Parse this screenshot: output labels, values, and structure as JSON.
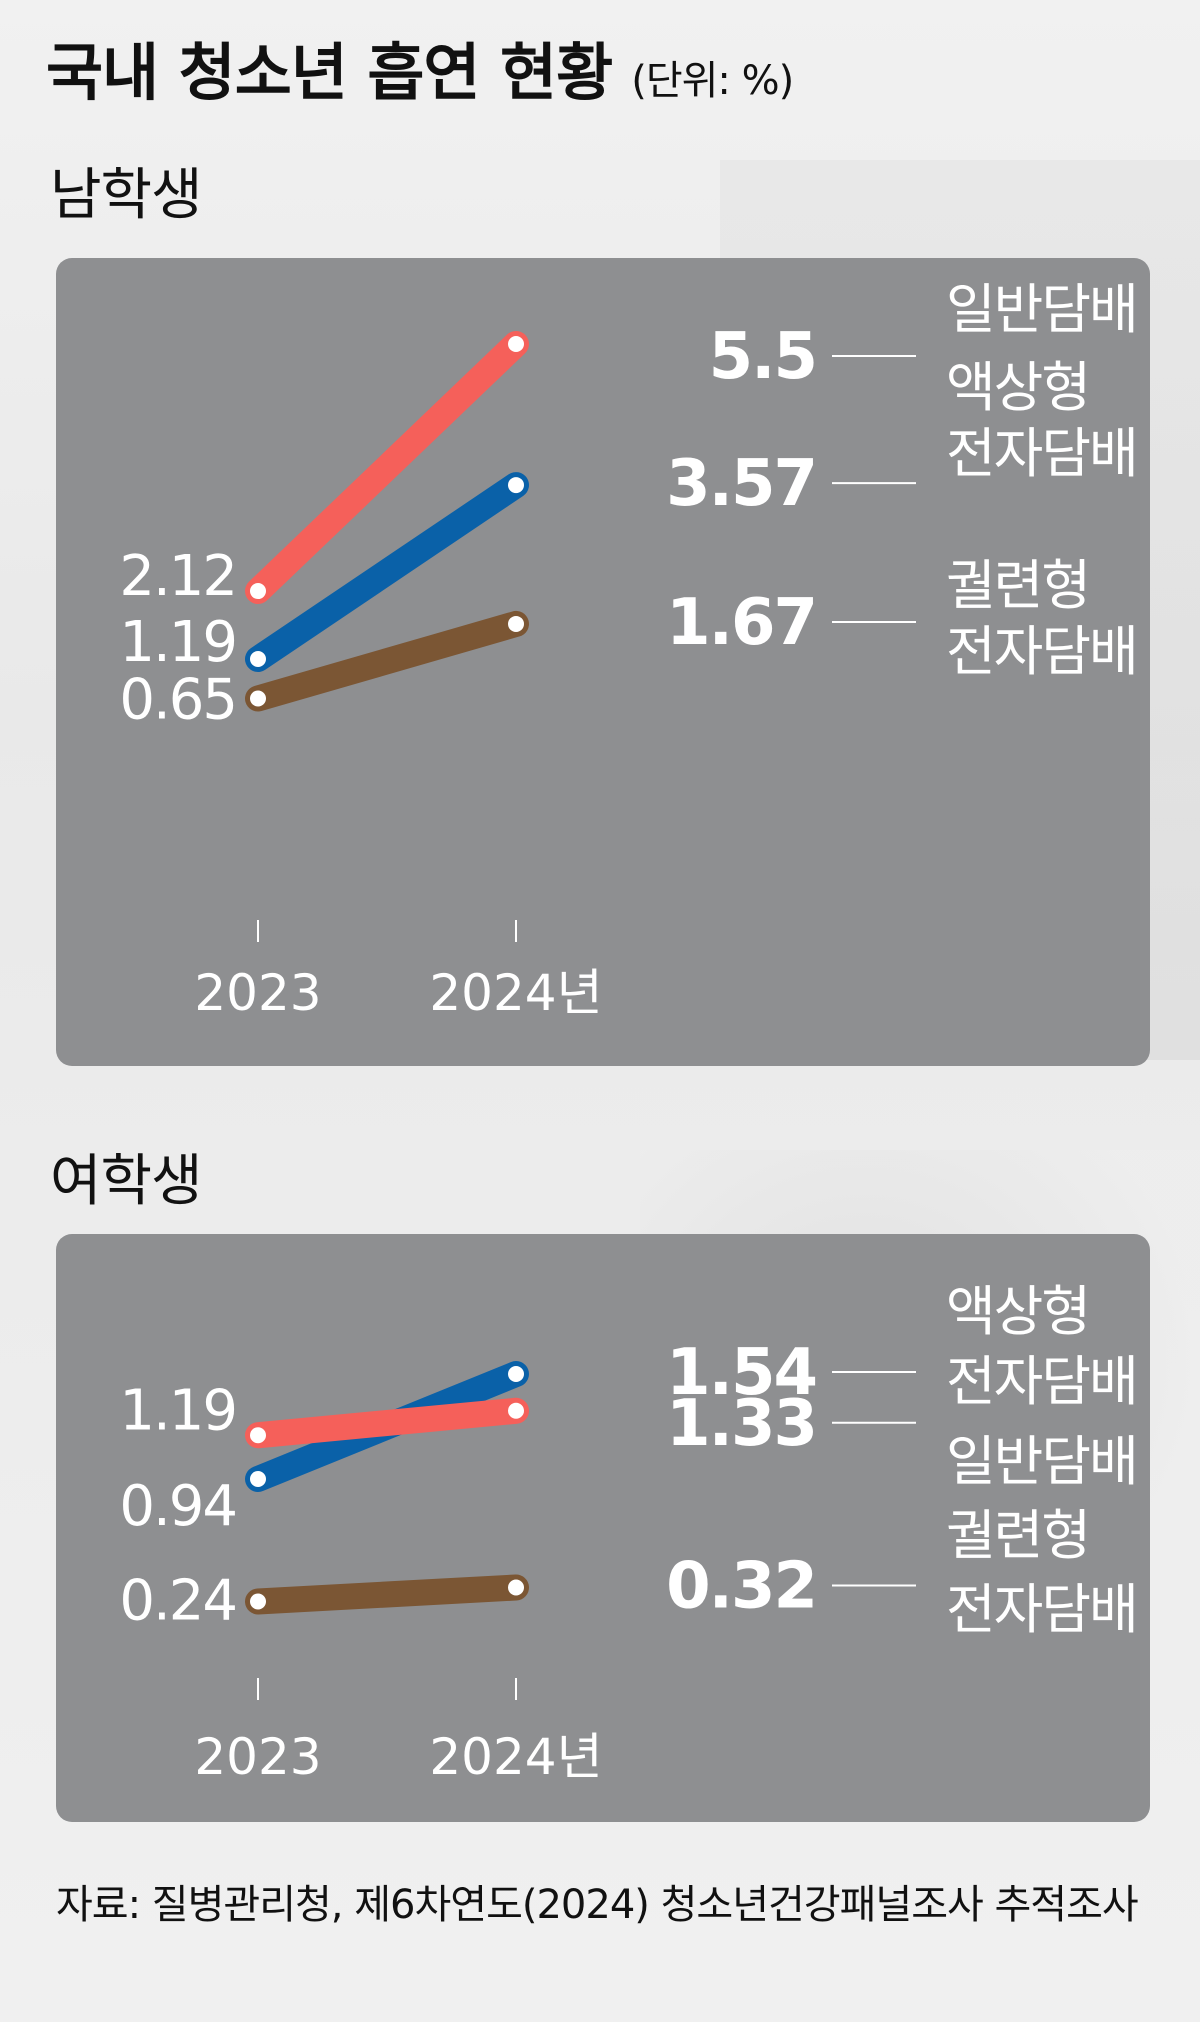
{
  "title": "국내 청소년 흡연 현황",
  "unit": "(단위: %)",
  "source": "자료: 질병관리청, 제6차연도(2024) 청소년건강패널조사 추적조사",
  "chart_data": [
    {
      "type": "line",
      "title": "남학생",
      "categories": [
        "2023",
        "2024년"
      ],
      "ylim": [
        0,
        6
      ],
      "series": [
        {
          "name": "일반담배",
          "color": "#f5605a",
          "values": [
            2.12,
            5.5
          ]
        },
        {
          "name": "액상형 전자담배",
          "color": "#0a61a8",
          "values": [
            1.19,
            3.57
          ]
        },
        {
          "name": "궐련형 전자담배",
          "color": "#7b5634",
          "values": [
            0.65,
            1.67
          ]
        }
      ]
    },
    {
      "type": "line",
      "title": "여학생",
      "categories": [
        "2023",
        "2024년"
      ],
      "ylim": [
        0,
        2
      ],
      "series": [
        {
          "name": "액상형 전자담배",
          "color": "#0a61a8",
          "values": [
            0.94,
            1.54
          ]
        },
        {
          "name": "일반담배",
          "color": "#f5605a",
          "values": [
            1.19,
            1.33
          ]
        },
        {
          "name": "궐련형 전자담배",
          "color": "#7b5634",
          "values": [
            0.24,
            0.32
          ]
        }
      ]
    }
  ]
}
